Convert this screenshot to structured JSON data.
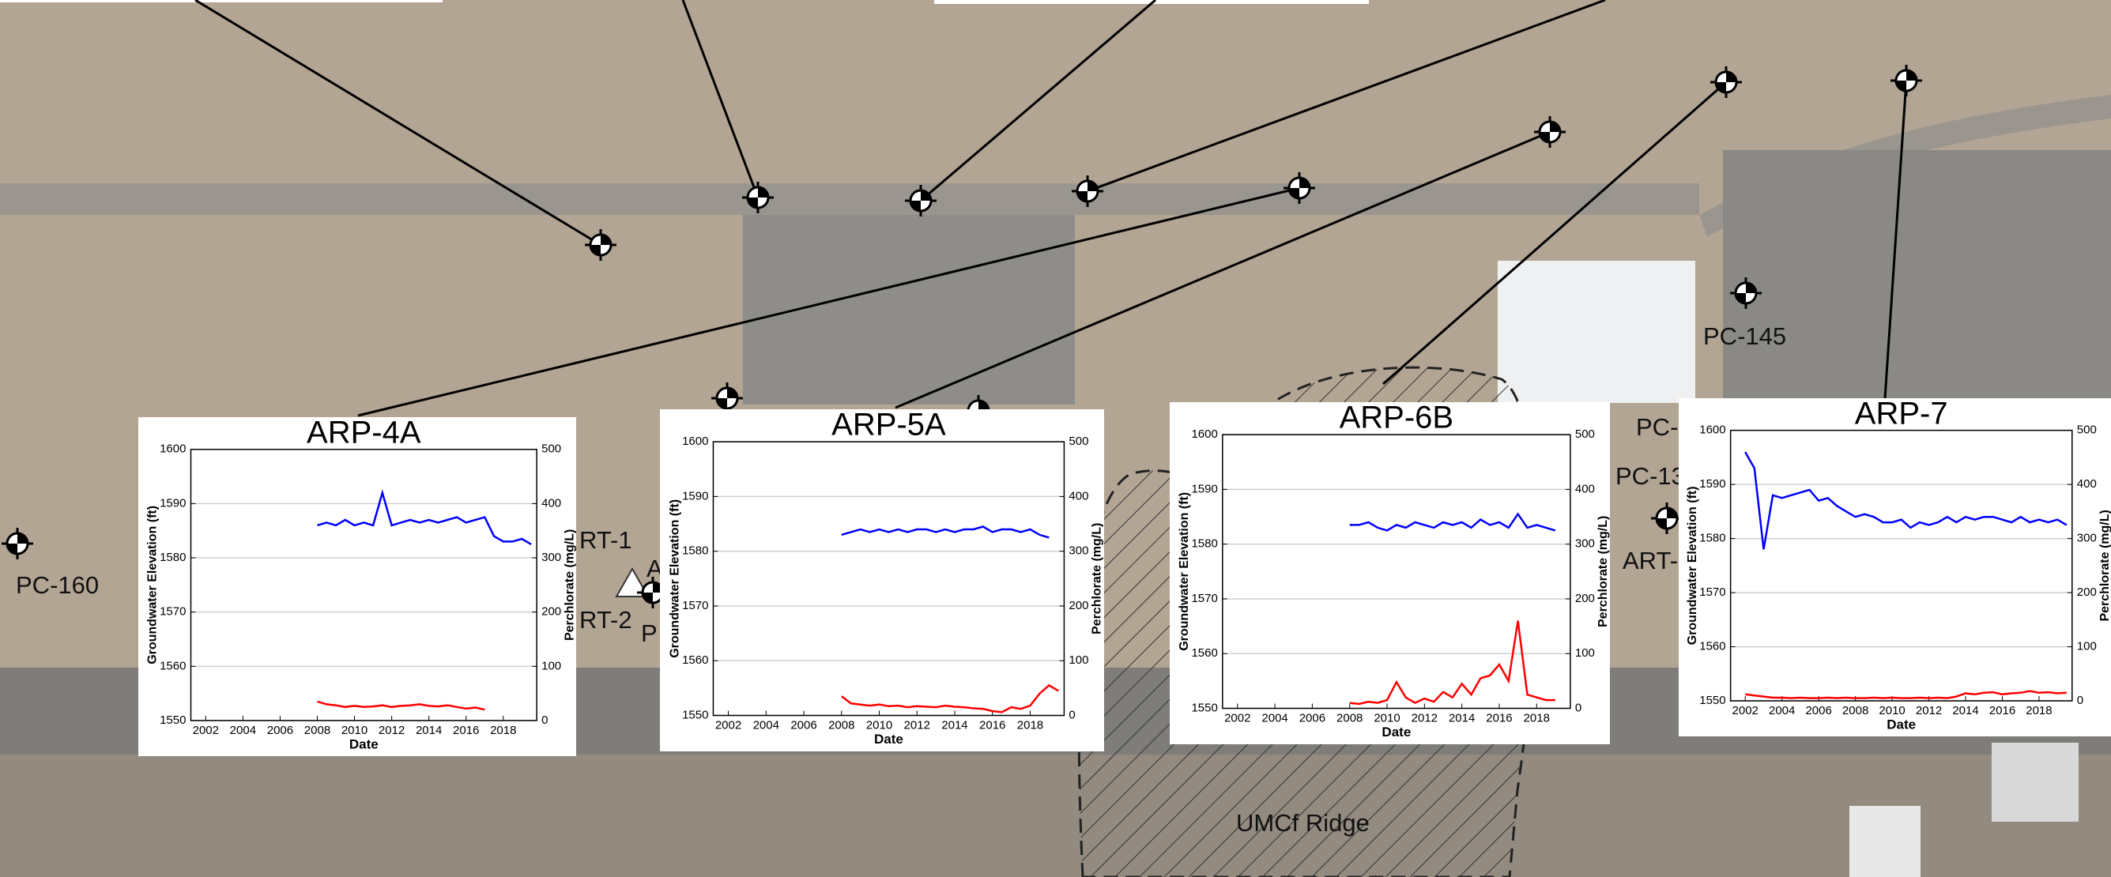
{
  "map_labels": [
    "PC-160",
    "PC-145",
    "RT-1",
    "RT-2",
    "P",
    "A",
    "PC-",
    "PC-13",
    "ART-",
    "UMCf Ridge"
  ],
  "chart_data": [
    {
      "type": "line",
      "title": "ARP-4A",
      "xlabel": "Date",
      "ylabel": "Groundwater Elevation (ft)",
      "y2label": "Perchlorate (mg/L)",
      "xlim": [
        2001.2,
        2019.8
      ],
      "xticks": [
        2002,
        2004,
        2006,
        2008,
        2010,
        2012,
        2014,
        2016,
        2018
      ],
      "ylim": [
        1550,
        1600
      ],
      "yticks": [
        1550,
        1560,
        1570,
        1580,
        1590,
        1600
      ],
      "y2lim": [
        0,
        500
      ],
      "y2ticks": [
        0,
        100,
        200,
        300,
        400,
        500
      ],
      "grid": true,
      "x": [
        2008,
        2008.5,
        2009,
        2009.5,
        2010,
        2010.5,
        2011,
        2011.5,
        2012,
        2012.5,
        2013,
        2013.5,
        2014,
        2014.5,
        2015,
        2015.5,
        2016,
        2016.5,
        2017,
        2017.5,
        2018,
        2018.5,
        2019,
        2019.5
      ],
      "series": [
        {
          "color": "#0000ff",
          "values": [
            1586,
            1586.5,
            1586,
            1587,
            1586,
            1586.5,
            1586,
            1592,
            1586,
            1586.5,
            1587,
            1586.5,
            1587,
            1586.5,
            1587,
            1587.5,
            1586.5,
            1587,
            1587.5,
            1584,
            1583,
            1583,
            1583.5,
            1582.5
          ]
        },
        {
          "color": "#ff0000",
          "axis": "y2",
          "values": [
            35,
            30,
            28,
            25,
            27,
            25,
            26,
            28,
            25,
            27,
            28,
            30,
            27,
            26,
            28,
            25,
            22,
            24,
            20,
            null,
            null,
            null,
            null,
            null
          ]
        }
      ]
    },
    {
      "type": "line",
      "title": "ARP-5A",
      "xlabel": "Date",
      "ylabel": "Groundwater Elevation (ft)",
      "y2label": "Perchlorate (mg/L)",
      "xlim": [
        2001.2,
        2019.8
      ],
      "xticks": [
        2002,
        2004,
        2006,
        2008,
        2010,
        2012,
        2014,
        2016,
        2018
      ],
      "ylim": [
        1550,
        1600
      ],
      "yticks": [
        1550,
        1560,
        1570,
        1580,
        1590,
        1600
      ],
      "y2lim": [
        0,
        500
      ],
      "y2ticks": [
        0,
        100,
        200,
        300,
        400,
        500
      ],
      "grid": true,
      "x": [
        2008,
        2008.5,
        2009,
        2009.5,
        2010,
        2010.5,
        2011,
        2011.5,
        2012,
        2012.5,
        2013,
        2013.5,
        2014,
        2014.5,
        2015,
        2015.5,
        2016,
        2016.5,
        2017,
        2017.5,
        2018,
        2018.5,
        2019,
        2019.5
      ],
      "series": [
        {
          "color": "#0000ff",
          "values": [
            1583,
            1583.5,
            1584,
            1583.5,
            1584,
            1583.5,
            1584,
            1583.5,
            1584,
            1584,
            1583.5,
            1584,
            1583.5,
            1584,
            1584,
            1584.5,
            1583.5,
            1584,
            1584,
            1583.5,
            1584,
            1583,
            1582.5,
            null
          ]
        },
        {
          "color": "#ff0000",
          "axis": "y2",
          "values": [
            35,
            22,
            20,
            18,
            20,
            17,
            18,
            15,
            17,
            16,
            15,
            18,
            16,
            15,
            13,
            12,
            8,
            6,
            15,
            12,
            18,
            40,
            55,
            45
          ]
        }
      ]
    },
    {
      "type": "line",
      "title": "ARP-6B",
      "xlabel": "Date",
      "ylabel": "Groundwater Elevation (ft)",
      "y2label": "Perchlorate (mg/L)",
      "xlim": [
        2001.2,
        2019.8
      ],
      "xticks": [
        2002,
        2004,
        2006,
        2008,
        2010,
        2012,
        2014,
        2016,
        2018
      ],
      "ylim": [
        1550,
        1600
      ],
      "yticks": [
        1550,
        1560,
        1570,
        1580,
        1590,
        1600
      ],
      "y2lim": [
        0,
        500
      ],
      "y2ticks": [
        0,
        100,
        200,
        300,
        400,
        500
      ],
      "grid": true,
      "x": [
        2008,
        2008.5,
        2009,
        2009.5,
        2010,
        2010.5,
        2011,
        2011.5,
        2012,
        2012.5,
        2013,
        2013.5,
        2014,
        2014.5,
        2015,
        2015.5,
        2016,
        2016.5,
        2017,
        2017.5,
        2018,
        2018.5,
        2019,
        2019.5
      ],
      "series": [
        {
          "color": "#0000ff",
          "values": [
            1583.5,
            1583.5,
            1584,
            1583,
            1582.5,
            1583.5,
            1583,
            1584,
            1583.5,
            1583,
            1584,
            1583.5,
            1584,
            1583,
            1584.5,
            1583.5,
            1584,
            1583,
            1585.5,
            1583,
            1583.5,
            1583,
            1582.5,
            null
          ]
        },
        {
          "color": "#ff0000",
          "axis": "y2",
          "values": [
            10,
            8,
            12,
            10,
            15,
            48,
            20,
            10,
            18,
            12,
            30,
            20,
            45,
            25,
            55,
            60,
            80,
            50,
            160,
            25,
            20,
            15,
            15,
            null
          ]
        }
      ]
    },
    {
      "type": "line",
      "title": "ARP-7",
      "xlabel": "Date",
      "ylabel": "Groundwater Elevation (ft)",
      "y2label": "Perchlorate (mg/L)",
      "xlim": [
        2001.2,
        2019.8
      ],
      "xticks": [
        2002,
        2004,
        2006,
        2008,
        2010,
        2012,
        2014,
        2016,
        2018
      ],
      "ylim": [
        1550,
        1600
      ],
      "yticks": [
        1550,
        1560,
        1570,
        1580,
        1590,
        1600
      ],
      "y2lim": [
        0,
        500
      ],
      "y2ticks": [
        0,
        100,
        200,
        300,
        400,
        500
      ],
      "grid": true,
      "x": [
        2002,
        2002.5,
        2003,
        2003.5,
        2004,
        2004.5,
        2005,
        2005.5,
        2006,
        2006.5,
        2007,
        2007.5,
        2008,
        2008.5,
        2009,
        2009.5,
        2010,
        2010.5,
        2011,
        2011.5,
        2012,
        2012.5,
        2013,
        2013.5,
        2014,
        2014.5,
        2015,
        2015.5,
        2016,
        2016.5,
        2017,
        2017.5,
        2018,
        2018.5,
        2019,
        2019.5
      ],
      "series": [
        {
          "color": "#0000ff",
          "values": [
            1596,
            1593,
            1578,
            1588,
            1587.5,
            1588,
            1588.5,
            1589,
            1587,
            1587.5,
            1586,
            1585,
            1584,
            1584.5,
            1584,
            1583,
            1583,
            1583.5,
            1582,
            1583,
            1582.5,
            1583,
            1584,
            1583,
            1584,
            1583.5,
            1584,
            1584,
            1583.5,
            1583,
            1584,
            1583,
            1583.5,
            1583,
            1583.5,
            1582.5
          ]
        },
        {
          "color": "#ff0000",
          "axis": "y2",
          "values": [
            12,
            10,
            8,
            6,
            6,
            5,
            6,
            5,
            5,
            6,
            5,
            6,
            5,
            5,
            6,
            5,
            6,
            5,
            5,
            6,
            5,
            6,
            5,
            8,
            14,
            12,
            15,
            16,
            12,
            14,
            15,
            18,
            15,
            16,
            14,
            15
          ]
        }
      ]
    }
  ]
}
